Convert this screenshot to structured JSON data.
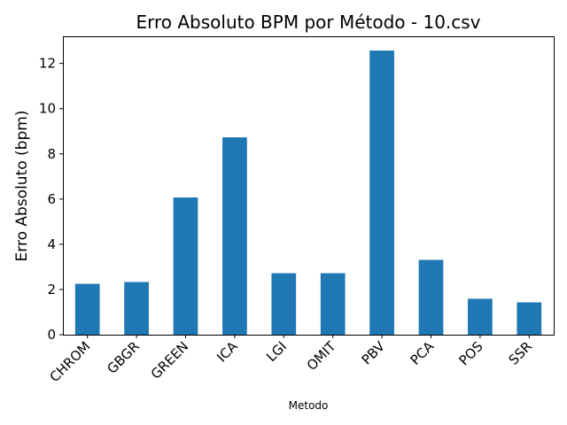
{
  "chart_data": {
    "type": "bar",
    "title": "Erro Absoluto BPM por Método - 10.csv",
    "xlabel": "Metodo",
    "ylabel": "Erro Absoluto (bpm)",
    "categories": [
      "CHROM",
      "GBGR",
      "GREEN",
      "ICA",
      "LGI",
      "OMIT",
      "PBV",
      "PCA",
      "POS",
      "SSR"
    ],
    "values": [
      2.25,
      2.33,
      6.07,
      8.73,
      2.72,
      2.72,
      12.57,
      3.31,
      1.59,
      1.43
    ],
    "ylim": [
      0,
      13.2
    ],
    "yticks": [
      0,
      2,
      4,
      6,
      8,
      10,
      12
    ],
    "grid": false,
    "legend": "none",
    "bar_color": "#1f77b4",
    "x_tick_rotation_deg": 45
  }
}
